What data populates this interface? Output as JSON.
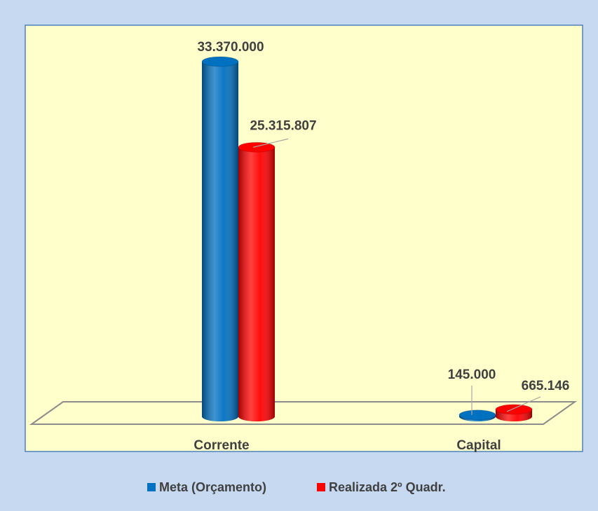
{
  "chart_data": {
    "type": "bar3d",
    "categories": [
      "Corrente",
      "Capital"
    ],
    "series": [
      {
        "name": "Meta (Orçamento)",
        "color": "#0070c0",
        "values": [
          33370000,
          145000
        ],
        "value_labels": [
          "33.370.000",
          "145.000"
        ]
      },
      {
        "name": "Realizada 2º Quadr.",
        "color": "#ff0000",
        "values": [
          25315807,
          665146
        ],
        "value_labels": [
          "25.315.807",
          "665.146"
        ]
      }
    ]
  }
}
